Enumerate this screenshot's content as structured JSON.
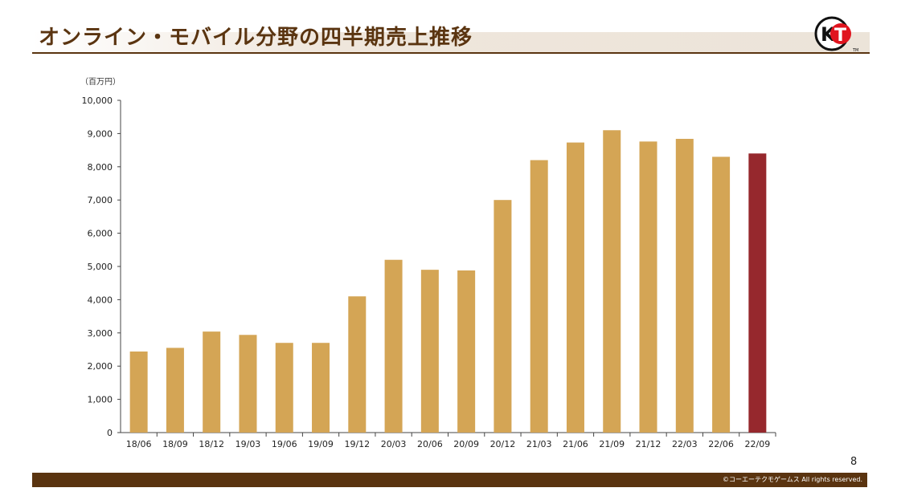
{
  "header": {
    "title": "オンライン・モバイル分野の四半期売上推移",
    "logo_text": "KT",
    "logo_mark": "TM"
  },
  "chart_data": {
    "type": "bar",
    "unit_label": "（百万円）",
    "categories": [
      "18/06",
      "18/09",
      "18/12",
      "19/03",
      "19/06",
      "19/09",
      "19/12",
      "20/03",
      "20/06",
      "20/09",
      "20/12",
      "21/03",
      "21/06",
      "21/09",
      "21/12",
      "22/03",
      "22/06",
      "22/09"
    ],
    "values": [
      2440,
      2550,
      3040,
      2940,
      2700,
      2700,
      4100,
      5200,
      4900,
      4880,
      7000,
      8200,
      8730,
      9100,
      8760,
      8840,
      8300,
      8400
    ],
    "ylim": [
      0,
      10000
    ],
    "yticks": [
      "0",
      "1,000",
      "2,000",
      "3,000",
      "4,000",
      "5,000",
      "6,000",
      "7,000",
      "8,000",
      "9,000",
      "10,000"
    ],
    "colors": {
      "bar": "#d4a555",
      "highlight": "#96282d",
      "axis": "#444444"
    },
    "highlight_index": 17,
    "grid": false,
    "legend": "none"
  },
  "footer": {
    "page_number": "8",
    "copyright": "©コーエーテクモゲームス  All rights reserved."
  }
}
